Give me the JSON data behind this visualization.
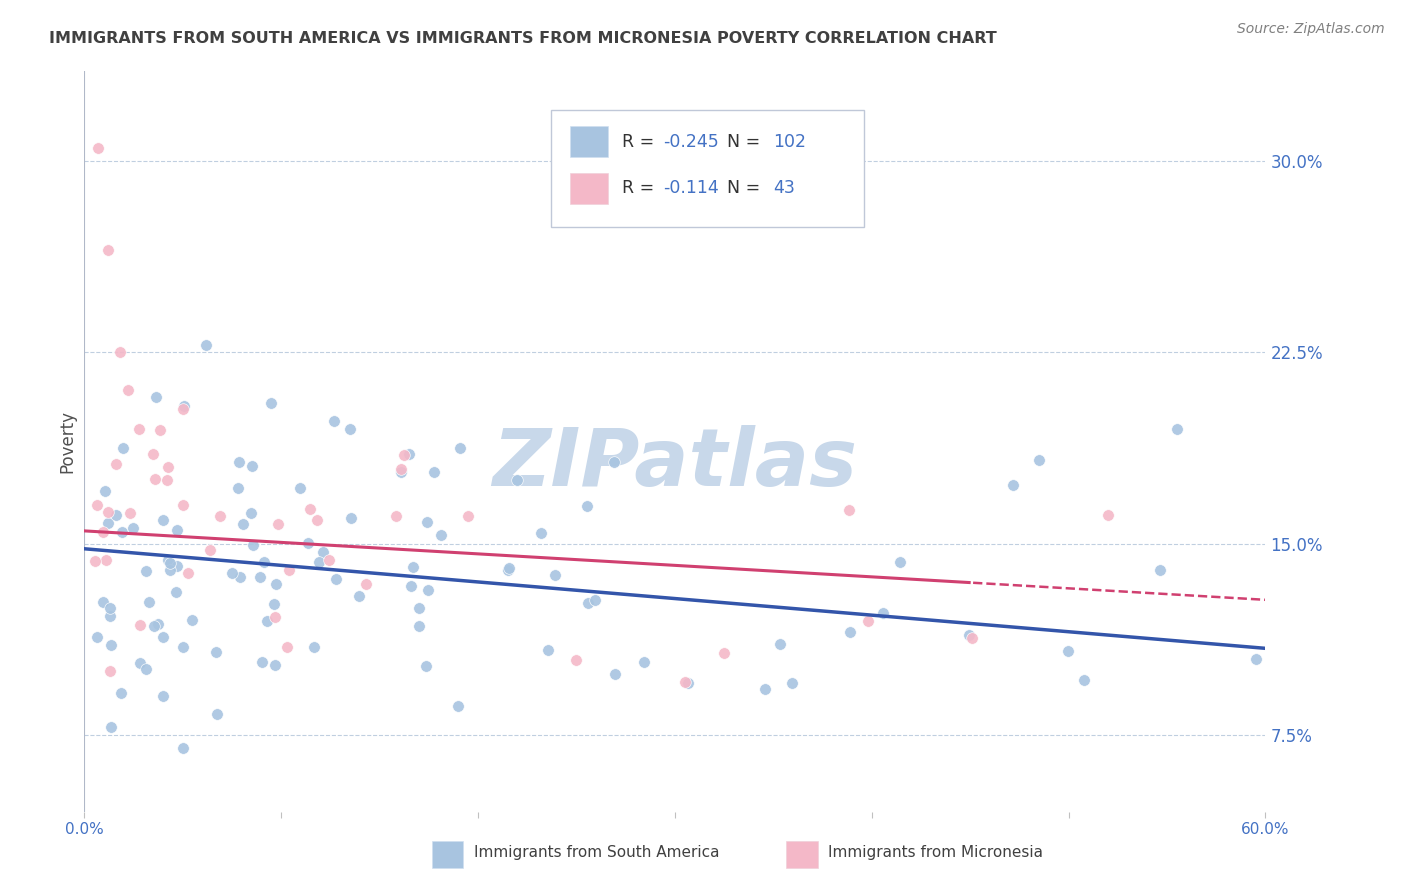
{
  "title": "IMMIGRANTS FROM SOUTH AMERICA VS IMMIGRANTS FROM MICRONESIA POVERTY CORRELATION CHART",
  "source": "Source: ZipAtlas.com",
  "ylabel": "Poverty",
  "xlim": [
    0.0,
    0.6
  ],
  "ylim": [
    0.045,
    0.335
  ],
  "yticks": [
    0.075,
    0.15,
    0.225,
    0.3
  ],
  "yticklabels": [
    "7.5%",
    "15.0%",
    "22.5%",
    "30.0%"
  ],
  "blue_color": "#a8c4e0",
  "pink_color": "#f4b8c8",
  "blue_line_color": "#3355aa",
  "pink_line_color": "#d04070",
  "legend_blue_r": "-0.245",
  "legend_blue_n": "102",
  "legend_pink_r": "-0.114",
  "legend_pink_n": "43",
  "legend_label_blue": "Immigrants from South America",
  "legend_label_pink": "Immigrants from Micronesia",
  "watermark": "ZIPatlas",
  "watermark_color": "#c8d8ea",
  "grid_color": "#c0cfe0",
  "background_color": "#ffffff",
  "title_color": "#404040",
  "axis_color": "#4472c4",
  "source_color": "#808080"
}
